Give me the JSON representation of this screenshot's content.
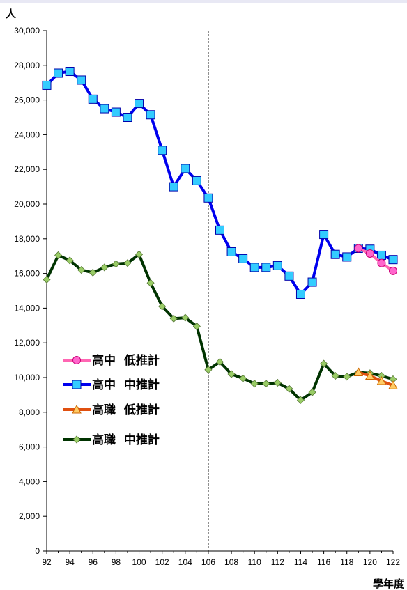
{
  "chart_data": {
    "type": "line",
    "ylabel": "人",
    "xlabel": "學年度",
    "ylim": [
      0,
      30000
    ],
    "yticks": [
      0,
      2000,
      4000,
      6000,
      8000,
      10000,
      12000,
      14000,
      16000,
      18000,
      20000,
      22000,
      24000,
      26000,
      28000,
      30000
    ],
    "ytick_labels": [
      "0",
      "2,000",
      "4,000",
      "6,000",
      "8,000",
      "10,000",
      "12,000",
      "14,000",
      "16,000",
      "18,000",
      "20,000",
      "22,000",
      "24,000",
      "26,000",
      "28,000",
      "30,000"
    ],
    "xlim": [
      92,
      122
    ],
    "xticks": [
      92,
      94,
      96,
      98,
      100,
      102,
      104,
      106,
      108,
      110,
      112,
      114,
      116,
      118,
      120,
      122
    ],
    "xtick_labels": [
      "92",
      "94",
      "96",
      "98",
      "100",
      "102",
      "104",
      "106",
      "108",
      "110",
      "112",
      "114",
      "116",
      "118",
      "120",
      "122"
    ],
    "divider_x": 106,
    "grid": false,
    "legend_position": "left-middle",
    "series": [
      {
        "name": "高中  低推計",
        "color": "#ff66b3",
        "marker": "circle",
        "marker_fill": "#ff66cc",
        "x": [
          119,
          120,
          121,
          122
        ],
        "values": [
          17450,
          17150,
          16600,
          16150
        ]
      },
      {
        "name": "高中  中推計",
        "color": "#0000ee",
        "marker": "square",
        "marker_fill": "#33ccff",
        "x": [
          92,
          93,
          94,
          95,
          96,
          97,
          98,
          99,
          100,
          101,
          102,
          103,
          104,
          105,
          106,
          107,
          108,
          109,
          110,
          111,
          112,
          113,
          114,
          115,
          116,
          117,
          118,
          119,
          120,
          121,
          122
        ],
        "values": [
          26850,
          27550,
          27650,
          27150,
          26050,
          25500,
          25300,
          25000,
          25800,
          25150,
          23100,
          21000,
          22050,
          21350,
          20350,
          18500,
          17250,
          16850,
          16350,
          16350,
          16450,
          15850,
          14800,
          15500,
          18250,
          17100,
          16950,
          17450,
          17400,
          17050,
          16800
        ]
      },
      {
        "name": "高職  低推計",
        "color": "#e05010",
        "marker": "triangle",
        "marker_fill": "#ffcc66",
        "x": [
          119,
          120,
          121,
          122
        ],
        "values": [
          10300,
          10100,
          9800,
          9550
        ]
      },
      {
        "name": "高職  中推計",
        "color": "#003300",
        "marker": "diamond",
        "marker_fill": "#99cc66",
        "x": [
          92,
          93,
          94,
          95,
          96,
          97,
          98,
          99,
          100,
          101,
          102,
          103,
          104,
          105,
          106,
          107,
          108,
          109,
          110,
          111,
          112,
          113,
          114,
          115,
          116,
          117,
          118,
          119,
          120,
          121,
          122
        ],
        "values": [
          15650,
          17050,
          16750,
          16200,
          16050,
          16350,
          16550,
          16600,
          17100,
          15450,
          14100,
          13400,
          13450,
          12950,
          10450,
          10900,
          10200,
          9950,
          9650,
          9650,
          9700,
          9350,
          8700,
          9150,
          10800,
          10100,
          10050,
          10300,
          10250,
          10100,
          9900
        ]
      }
    ]
  }
}
